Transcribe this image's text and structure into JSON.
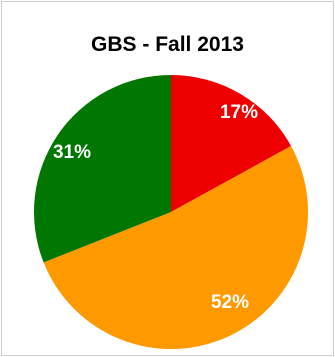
{
  "chart_data": {
    "type": "pie",
    "title": "GBS - Fall 2013",
    "slices": [
      {
        "label": "17%",
        "value": 17,
        "color": "#ee0000"
      },
      {
        "label": "52%",
        "value": 52,
        "color": "#ff9900"
      },
      {
        "label": "31%",
        "value": 31,
        "color": "#007700"
      }
    ],
    "start_angle_deg": 0,
    "direction": "clockwise",
    "legend": "none"
  }
}
